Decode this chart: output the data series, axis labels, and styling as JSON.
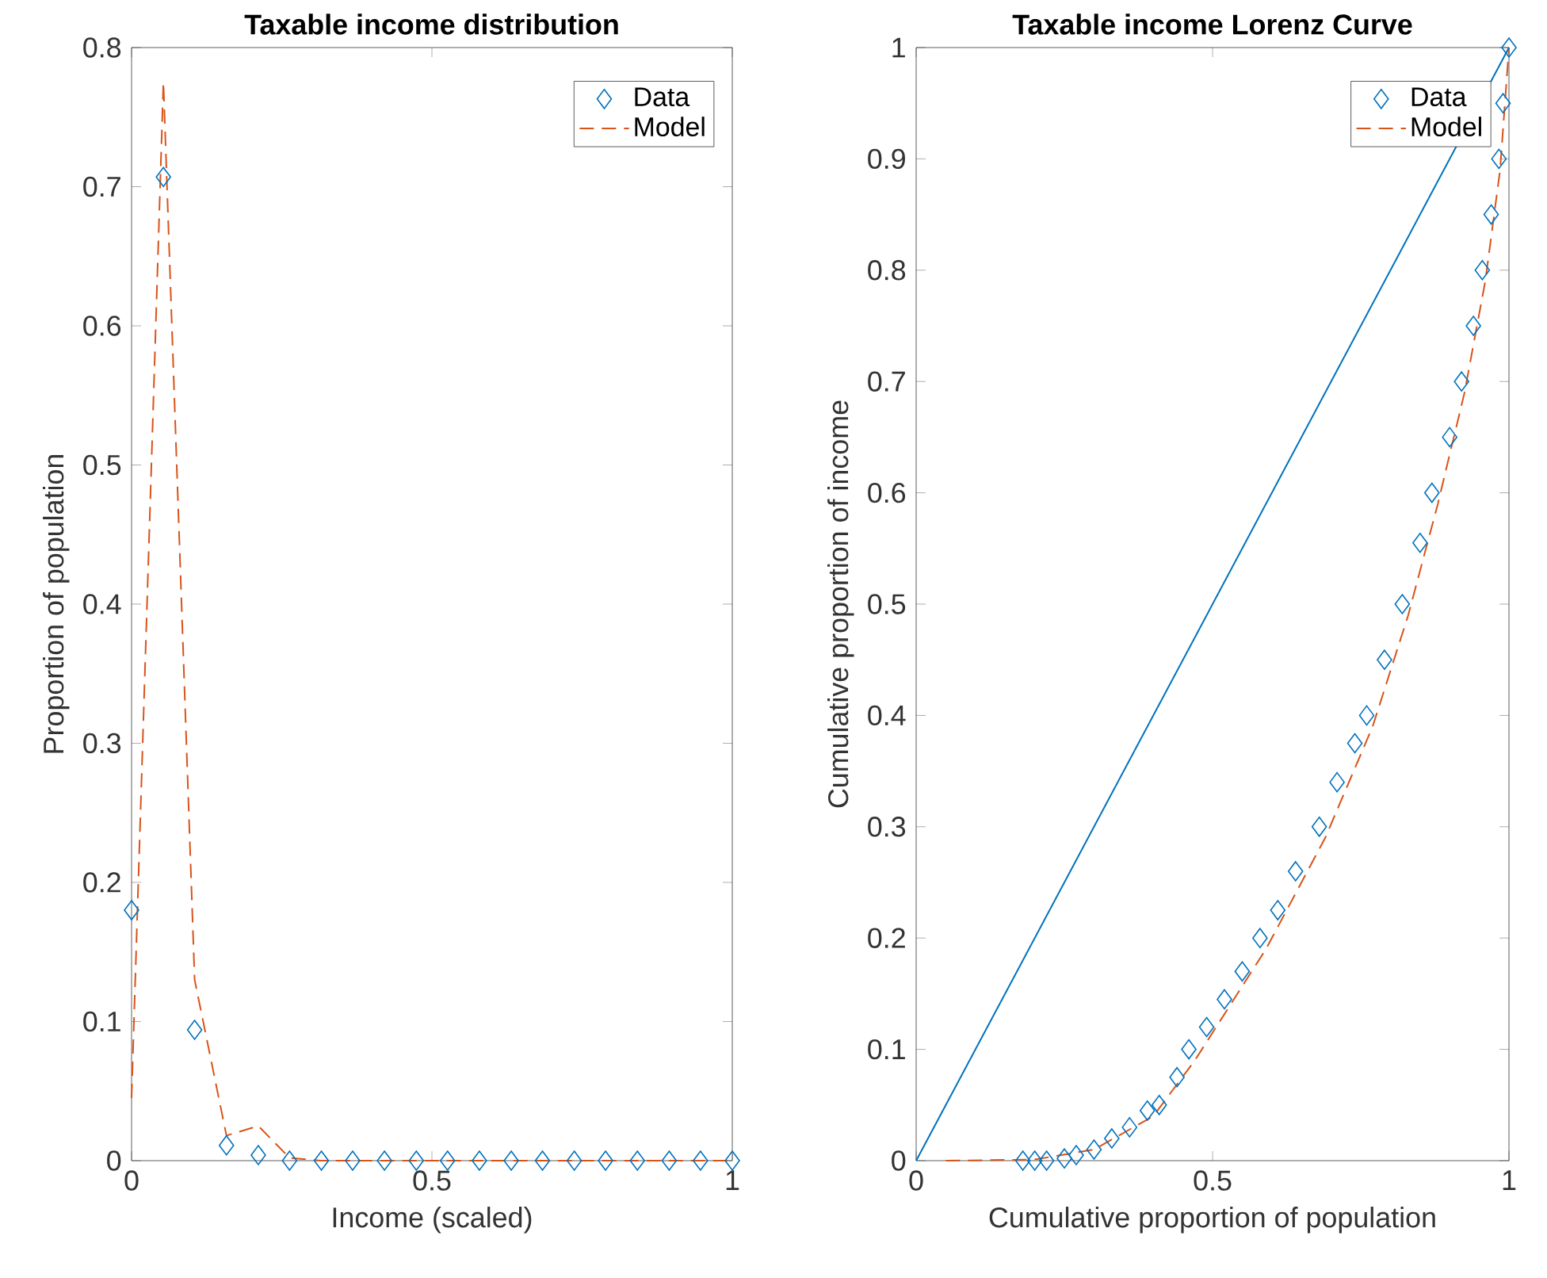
{
  "chart_data": [
    {
      "type": "line",
      "title": "Taxable income distribution",
      "xlabel": "Income (scaled)",
      "ylabel": "Proportion of population",
      "xlim": [
        0,
        1
      ],
      "xticks": [
        0,
        0.5,
        1
      ],
      "ylim": [
        0,
        0.8
      ],
      "yticks": [
        0,
        0.1,
        0.2,
        0.3,
        0.4,
        0.5,
        0.6,
        0.7,
        0.8
      ],
      "legend": "top right",
      "series": [
        {
          "name": "Data",
          "type": "scatter",
          "marker": "diamond",
          "color": "#0072bd",
          "x": [
            0,
            0.053,
            0.105,
            0.158,
            0.211,
            0.263,
            0.316,
            0.368,
            0.421,
            0.474,
            0.526,
            0.579,
            0.632,
            0.684,
            0.737,
            0.789,
            0.842,
            0.895,
            0.947,
            1
          ],
          "values": [
            0.18,
            0.707,
            0.094,
            0.011,
            0.004,
            0,
            0,
            0,
            0,
            0,
            0,
            0,
            0,
            0,
            0,
            0,
            0,
            0,
            0,
            0
          ]
        },
        {
          "name": "Model",
          "type": "line",
          "line_style": "dashed",
          "color": "#d95319",
          "x": [
            0,
            0.053,
            0.105,
            0.158,
            0.211,
            0.263,
            0.316,
            0.368,
            0.421,
            0.474,
            0.526,
            0.579,
            0.632,
            0.684,
            0.737,
            0.789,
            0.842,
            0.895,
            0.947,
            1
          ],
          "values": [
            0.045,
            0.775,
            0.13,
            0.018,
            0.025,
            0.002,
            0,
            0,
            0,
            0,
            0,
            0,
            0,
            0,
            0,
            0,
            0,
            0,
            0,
            0
          ]
        }
      ]
    },
    {
      "type": "line",
      "title": "Taxable income Lorenz Curve",
      "xlabel": "Cumulative proportion of population",
      "ylabel": "Cumulative proportion of income",
      "xlim": [
        0,
        1
      ],
      "xticks": [
        0,
        0.5,
        1
      ],
      "ylim": [
        0,
        1
      ],
      "yticks": [
        0,
        0.1,
        0.2,
        0.3,
        0.4,
        0.5,
        0.6,
        0.7,
        0.8,
        0.9,
        1
      ],
      "legend": "top right",
      "series": [
        {
          "name": "Data",
          "type": "scatter",
          "marker": "diamond",
          "color": "#0072bd",
          "x": [
            0.18,
            0.2,
            0.22,
            0.25,
            0.27,
            0.3,
            0.33,
            0.36,
            0.39,
            0.41,
            0.44,
            0.46,
            0.49,
            0.52,
            0.55,
            0.58,
            0.61,
            0.64,
            0.68,
            0.71,
            0.74,
            0.76,
            0.79,
            0.82,
            0.85,
            0.87,
            0.9,
            0.92,
            0.94,
            0.955,
            0.97,
            0.983,
            0.99,
            1
          ],
          "values": [
            0,
            0,
            0,
            0.002,
            0.005,
            0.01,
            0.02,
            0.03,
            0.045,
            0.05,
            0.075,
            0.1,
            0.12,
            0.145,
            0.17,
            0.2,
            0.225,
            0.26,
            0.3,
            0.34,
            0.375,
            0.4,
            0.45,
            0.5,
            0.555,
            0.6,
            0.65,
            0.7,
            0.75,
            0.8,
            0.85,
            0.9,
            0.95,
            1
          ]
        },
        {
          "name": "Model",
          "type": "line",
          "line_style": "dashed",
          "color": "#d95319",
          "x": [
            0.05,
            0.2,
            0.3,
            0.4,
            0.47,
            0.59,
            0.69,
            0.77,
            0.83,
            0.88,
            0.925,
            0.96,
            0.985,
            1
          ],
          "values": [
            0,
            0.001,
            0.01,
            0.04,
            0.09,
            0.19,
            0.29,
            0.39,
            0.49,
            0.59,
            0.69,
            0.79,
            0.89,
            1
          ]
        },
        {
          "line_style": "solid",
          "color": "#0072bd",
          "x": [
            0,
            1
          ],
          "values": [
            0,
            1
          ]
        }
      ]
    }
  ]
}
